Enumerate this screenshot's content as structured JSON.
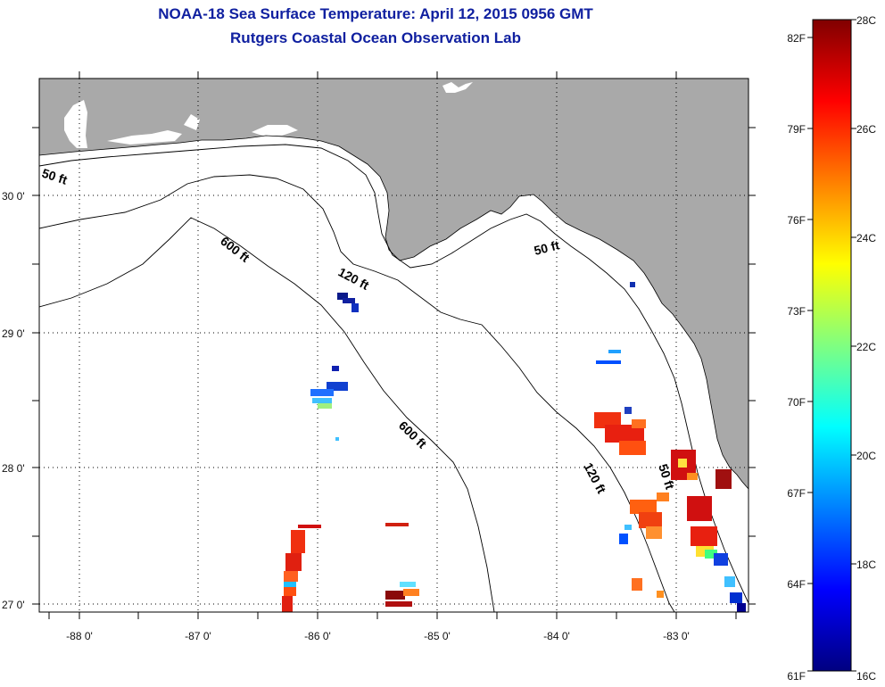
{
  "header": {
    "title": "NOAA-18 Sea Surface Temperature:  April 12, 2015 0956 GMT",
    "subtitle": "Rutgers Coastal Ocean Observation Lab"
  },
  "map": {
    "lon_labels": [
      "-88 0'",
      "-87 0'",
      "-86 0'",
      "-85 0'",
      "-84 0'",
      "-83 0'"
    ],
    "lat_labels": [
      "30 0'",
      "29 0'",
      "28 0'",
      "27 0'"
    ],
    "contour_labels": [
      "50 ft",
      "600 ft",
      "120 ft",
      "50 ft",
      "600 ft",
      "120 ft",
      "50 ft"
    ],
    "land_color": "#a9a9a9",
    "water_color": "#ffffff"
  },
  "colorbar": {
    "celsius_labels": [
      "28C",
      "26C",
      "24C",
      "22C",
      "20C",
      "18C",
      "16C"
    ],
    "fahrenheit_labels": [
      "82F",
      "79F",
      "76F",
      "73F",
      "70F",
      "67F",
      "64F",
      "61F"
    ],
    "colors": [
      "#000080",
      "#0000ff",
      "#0080ff",
      "#00ffff",
      "#80ff80",
      "#ffff00",
      "#ff8000",
      "#ff0000",
      "#800000"
    ]
  }
}
